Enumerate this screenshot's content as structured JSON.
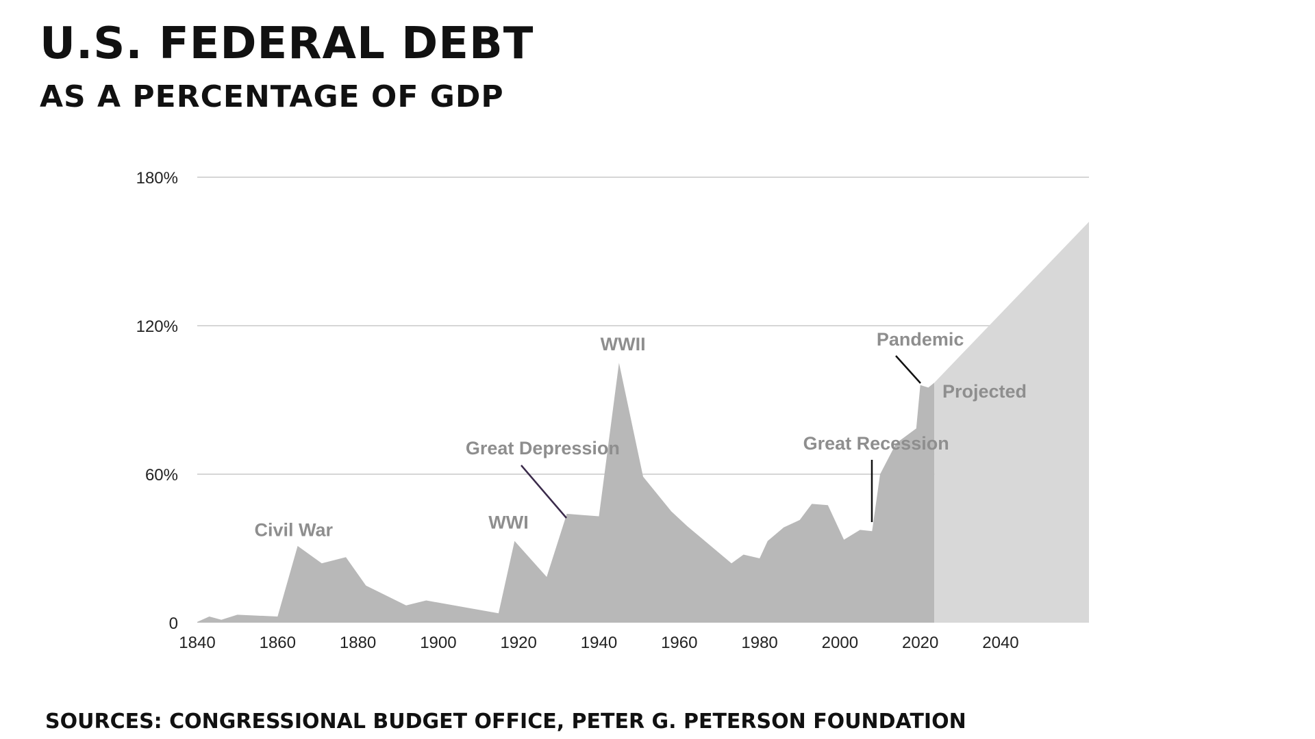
{
  "title": "U.S. FEDERAL DEBT",
  "subtitle": "AS A PERCENTAGE OF GDP",
  "sources": "SOURCES: CONGRESSIONAL BUDGET OFFICE, PETER G. PETERSON FOUNDATION",
  "chart_data": {
    "type": "area",
    "title": "U.S. FEDERAL DEBT",
    "subtitle": "AS A PERCENTAGE OF GDP",
    "xlabel": "",
    "ylabel": "",
    "xlim": [
      1840,
      2062
    ],
    "ylim": [
      0,
      180
    ],
    "grid": true,
    "x_ticks": [
      {
        "value": 1840,
        "label": "1840"
      },
      {
        "value": 1860,
        "label": "1860"
      },
      {
        "value": 1880,
        "label": "1880"
      },
      {
        "value": 1900,
        "label": "1900"
      },
      {
        "value": 1920,
        "label": "1920"
      },
      {
        "value": 1940,
        "label": "1940"
      },
      {
        "value": 1960,
        "label": "1960"
      },
      {
        "value": 1980,
        "label": "1980"
      },
      {
        "value": 2000,
        "label": "2000"
      },
      {
        "value": 2020,
        "label": "2020"
      },
      {
        "value": 2040,
        "label": "2040"
      }
    ],
    "y_ticks": [
      {
        "value": 0,
        "label": "0"
      },
      {
        "value": 60,
        "label": "60%"
      },
      {
        "value": 120,
        "label": "120%"
      },
      {
        "value": 180,
        "label": "180%"
      }
    ],
    "series": [
      {
        "color": "#b8b8b8",
        "points": [
          [
            1840,
            0.3
          ],
          [
            1843,
            2.5
          ],
          [
            1846,
            1.2
          ],
          [
            1850,
            3.2
          ],
          [
            1860,
            2.5
          ],
          [
            1865,
            31
          ],
          [
            1871,
            24
          ],
          [
            1877,
            26.5
          ],
          [
            1882,
            15
          ],
          [
            1892,
            7
          ],
          [
            1897,
            9
          ],
          [
            1915,
            3.8
          ],
          [
            1919,
            33
          ],
          [
            1927,
            18.5
          ],
          [
            1932,
            44
          ],
          [
            1936,
            43.5
          ],
          [
            1940,
            43
          ],
          [
            1945,
            105
          ],
          [
            1951,
            59
          ],
          [
            1958,
            45
          ],
          [
            1962,
            39
          ],
          [
            1973,
            24
          ],
          [
            1976,
            27.5
          ],
          [
            1980,
            26
          ],
          [
            1982,
            33
          ],
          [
            1986,
            38.5
          ],
          [
            1990,
            41.5
          ],
          [
            1993,
            48
          ],
          [
            1997,
            47.5
          ],
          [
            2001,
            33.5
          ],
          [
            2005,
            37.5
          ],
          [
            2008,
            37
          ],
          [
            2010,
            60
          ],
          [
            2014,
            72.5
          ],
          [
            2019,
            78.5
          ],
          [
            2020,
            96
          ],
          [
            2022,
            95
          ],
          [
            2023.5,
            97
          ]
        ]
      },
      {
        "name": "Projected",
        "color": "#d8d8d8",
        "points": [
          [
            2023.5,
            97
          ],
          [
            2062,
            162
          ]
        ]
      }
    ],
    "annotations": [
      {
        "label": "Civil War",
        "x": 1864,
        "y": 35
      },
      {
        "label": "WWI",
        "x": 1917.5,
        "y": 38
      },
      {
        "label": "Great Depression",
        "x": 1926,
        "y": 68
      },
      {
        "label": "WWII",
        "x": 1946,
        "y": 110
      },
      {
        "label": "Great Recession",
        "x": 2009,
        "y": 70
      },
      {
        "label": "Pandemic",
        "x": 2020,
        "y": 112
      },
      {
        "label": "Projected",
        "x": 2036,
        "y": 91
      }
    ]
  }
}
